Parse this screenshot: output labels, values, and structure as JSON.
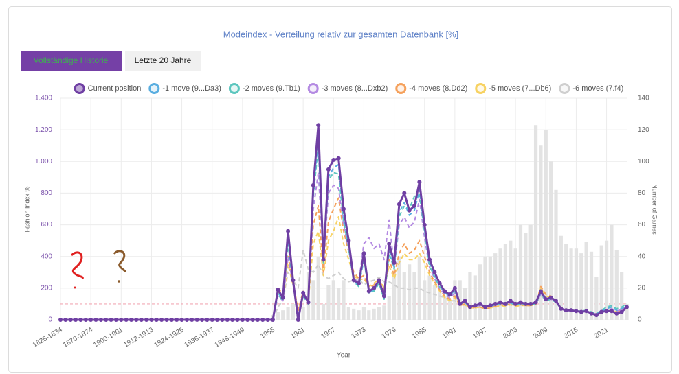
{
  "tabs": [
    "Vollständige Historie",
    "Letzte 20 Jahre"
  ],
  "chart_data": {
    "type": "line",
    "title": "Modeindex - Verteilung relativ zur gesamten Datenbank [%]",
    "y_label": "Fashion Index %",
    "y2_label": "Number of Games",
    "x_label": "Year",
    "categories": [
      "1825-1834",
      null,
      null,
      null,
      null,
      null,
      "1870-1874",
      null,
      null,
      null,
      null,
      null,
      "1900-1901",
      null,
      null,
      null,
      null,
      null,
      "1912-1913",
      null,
      null,
      null,
      null,
      null,
      "1924-1925",
      null,
      null,
      null,
      null,
      null,
      "1936-1937",
      null,
      null,
      null,
      null,
      null,
      "1948-1949",
      null,
      null,
      null,
      null,
      null,
      "1955",
      null,
      null,
      null,
      null,
      null,
      "1961",
      null,
      null,
      null,
      null,
      null,
      "1967",
      null,
      null,
      null,
      null,
      null,
      "1973",
      null,
      null,
      null,
      null,
      null,
      "1979",
      null,
      null,
      null,
      null,
      null,
      "1985",
      null,
      null,
      null,
      null,
      null,
      "1991",
      null,
      null,
      null,
      null,
      null,
      "1997",
      null,
      null,
      null,
      null,
      null,
      "2003",
      null,
      null,
      null,
      null,
      null,
      "2009",
      null,
      null,
      null,
      null,
      null,
      "2015",
      null,
      null,
      null,
      null,
      null,
      "2021",
      null,
      null,
      null,
      null
    ],
    "ylim": [
      0,
      1400
    ],
    "yticks": [
      0,
      200,
      400,
      600,
      800,
      {
        "value": 1000,
        "label": "1.000"
      },
      {
        "value": 1200,
        "label": "1.200"
      },
      {
        "value": 1400,
        "label": "1.400"
      }
    ],
    "y2lim": [
      0,
      140
    ],
    "y2ticks": [
      0,
      20,
      40,
      60,
      80,
      100,
      120,
      140
    ],
    "grid": true,
    "legend": "top",
    "reference_line": {
      "value": 100,
      "color": "#f2a9b4"
    },
    "series": [
      {
        "name": "Current position",
        "color": "#6f3fa3",
        "style": "solid",
        "markers": true,
        "values": [
          0,
          0,
          0,
          0,
          0,
          0,
          0,
          0,
          0,
          0,
          0,
          0,
          0,
          0,
          0,
          0,
          0,
          0,
          0,
          0,
          0,
          0,
          0,
          0,
          0,
          0,
          0,
          0,
          0,
          0,
          0,
          0,
          0,
          0,
          0,
          0,
          0,
          0,
          0,
          0,
          0,
          0,
          0,
          190,
          140,
          560,
          250,
          0,
          170,
          110,
          850,
          1230,
          380,
          950,
          1010,
          1020,
          700,
          500,
          250,
          230,
          420,
          180,
          200,
          250,
          150,
          480,
          360,
          730,
          800,
          690,
          720,
          870,
          600,
          380,
          300,
          230,
          180,
          160,
          200,
          100,
          120,
          80,
          90,
          100,
          80,
          90,
          100,
          110,
          100,
          120,
          100,
          110,
          100,
          100,
          110,
          180,
          130,
          140,
          120,
          70,
          60,
          60,
          55,
          50,
          55,
          40,
          30,
          50,
          55,
          55,
          40,
          50,
          80
        ]
      },
      {
        "name": "-1 move (9...Da3)",
        "color": "#5aaee0",
        "style": "dashed",
        "values": [
          0,
          0,
          0,
          0,
          0,
          0,
          0,
          0,
          0,
          0,
          0,
          0,
          0,
          0,
          0,
          0,
          0,
          0,
          0,
          0,
          0,
          0,
          0,
          0,
          0,
          0,
          0,
          0,
          0,
          0,
          0,
          0,
          0,
          0,
          0,
          0,
          0,
          0,
          0,
          0,
          0,
          0,
          0,
          170,
          130,
          520,
          240,
          10,
          160,
          110,
          800,
          1150,
          370,
          900,
          960,
          980,
          660,
          470,
          240,
          220,
          390,
          170,
          190,
          240,
          140,
          450,
          330,
          680,
          740,
          660,
          690,
          820,
          570,
          360,
          280,
          220,
          170,
          150,
          190,
          100,
          110,
          80,
          90,
          95,
          80,
          85,
          95,
          105,
          95,
          110,
          95,
          105,
          95,
          95,
          105,
          170,
          125,
          135,
          115,
          70,
          60,
          60,
          55,
          50,
          55,
          45,
          35,
          55,
          70,
          80,
          60,
          70,
          90
        ]
      },
      {
        "name": "-2 moves (9.Tb1)",
        "color": "#5cc6be",
        "style": "dashed",
        "values": [
          0,
          0,
          0,
          0,
          0,
          0,
          0,
          0,
          0,
          0,
          0,
          0,
          0,
          0,
          0,
          0,
          0,
          0,
          0,
          0,
          0,
          0,
          0,
          0,
          0,
          0,
          0,
          0,
          0,
          0,
          0,
          0,
          0,
          0,
          0,
          0,
          0,
          0,
          0,
          0,
          0,
          0,
          0,
          160,
          120,
          480,
          230,
          20,
          150,
          100,
          780,
          1100,
          360,
          880,
          930,
          920,
          620,
          450,
          240,
          210,
          380,
          170,
          180,
          230,
          130,
          420,
          320,
          650,
          720,
          700,
          780,
          790,
          560,
          340,
          270,
          210,
          170,
          150,
          180,
          100,
          110,
          80,
          90,
          95,
          80,
          85,
          95,
          100,
          95,
          105,
          95,
          100,
          95,
          95,
          100,
          170,
          120,
          130,
          110,
          70,
          60,
          60,
          55,
          55,
          60,
          50,
          40,
          60,
          80,
          90,
          70,
          80,
          100
        ]
      },
      {
        "name": "-3 moves (8...Dxb2)",
        "color": "#b48ae2",
        "style": "dashed",
        "values": [
          0,
          0,
          0,
          0,
          0,
          0,
          0,
          0,
          0,
          0,
          0,
          0,
          0,
          0,
          0,
          0,
          0,
          0,
          0,
          0,
          0,
          0,
          0,
          0,
          0,
          0,
          0,
          0,
          0,
          0,
          0,
          0,
          0,
          0,
          0,
          0,
          0,
          0,
          0,
          0,
          0,
          0,
          0,
          150,
          120,
          400,
          220,
          40,
          160,
          110,
          700,
          930,
          380,
          800,
          850,
          830,
          600,
          450,
          260,
          240,
          480,
          520,
          450,
          480,
          380,
          630,
          330,
          600,
          650,
          580,
          620,
          760,
          520,
          330,
          260,
          200,
          160,
          140,
          170,
          100,
          110,
          80,
          85,
          90,
          80,
          85,
          90,
          100,
          95,
          105,
          95,
          100,
          95,
          95,
          100,
          160,
          120,
          130,
          110,
          70,
          60,
          60,
          55,
          50,
          55,
          45,
          35,
          55,
          65,
          70,
          55,
          65,
          85
        ]
      },
      {
        "name": "-4 moves (8.Dd2)",
        "color": "#f5a15c",
        "style": "dashed",
        "values": [
          0,
          0,
          0,
          0,
          0,
          0,
          0,
          0,
          0,
          0,
          0,
          0,
          0,
          0,
          0,
          0,
          0,
          0,
          0,
          0,
          0,
          0,
          0,
          0,
          0,
          0,
          0,
          0,
          0,
          0,
          0,
          0,
          0,
          0,
          0,
          0,
          0,
          0,
          0,
          0,
          0,
          0,
          0,
          210,
          150,
          400,
          240,
          60,
          180,
          120,
          600,
          720,
          300,
          620,
          700,
          770,
          560,
          430,
          300,
          260,
          280,
          200,
          220,
          260,
          180,
          380,
          280,
          420,
          480,
          420,
          440,
          500,
          400,
          300,
          240,
          190,
          150,
          130,
          150,
          90,
          100,
          70,
          80,
          80,
          70,
          75,
          85,
          95,
          90,
          100,
          90,
          95,
          90,
          90,
          100,
          210,
          160,
          150,
          120,
          70,
          60,
          60,
          55,
          50,
          55,
          45,
          35,
          50,
          60,
          65,
          50,
          60,
          80
        ]
      },
      {
        "name": "-5 moves (7...Db6)",
        "color": "#f7d262",
        "style": "dashed",
        "values": [
          0,
          0,
          0,
          0,
          0,
          0,
          0,
          0,
          0,
          0,
          0,
          0,
          0,
          0,
          0,
          0,
          0,
          0,
          0,
          0,
          0,
          0,
          0,
          0,
          0,
          0,
          0,
          0,
          0,
          0,
          0,
          0,
          0,
          0,
          0,
          0,
          0,
          0,
          0,
          0,
          0,
          0,
          0,
          180,
          130,
          350,
          220,
          60,
          160,
          110,
          480,
          560,
          280,
          500,
          560,
          650,
          480,
          380,
          280,
          250,
          260,
          210,
          230,
          260,
          200,
          340,
          260,
          360,
          420,
          380,
          380,
          420,
          360,
          280,
          230,
          180,
          140,
          120,
          140,
          90,
          95,
          70,
          75,
          80,
          70,
          75,
          80,
          90,
          85,
          95,
          85,
          90,
          90,
          90,
          95,
          200,
          150,
          140,
          115,
          70,
          60,
          60,
          55,
          50,
          55,
          45,
          35,
          50,
          55,
          60,
          50,
          55,
          75
        ]
      },
      {
        "name": "-6 moves (7.f4)",
        "color": "#cfcfcf",
        "style": "dashed",
        "values": [
          0,
          0,
          0,
          0,
          0,
          0,
          0,
          0,
          0,
          0,
          0,
          0,
          0,
          0,
          0,
          0,
          0,
          0,
          0,
          0,
          0,
          0,
          0,
          0,
          0,
          0,
          0,
          0,
          0,
          0,
          0,
          0,
          0,
          0,
          0,
          0,
          0,
          0,
          0,
          0,
          0,
          0,
          0,
          80,
          120,
          300,
          250,
          200,
          440,
          320,
          300,
          350,
          280,
          260,
          280,
          300,
          260,
          240,
          250,
          260,
          220,
          240,
          250,
          270,
          240,
          240,
          220,
          200,
          200,
          190,
          200,
          200,
          180,
          170,
          160,
          150,
          140,
          120,
          120,
          100,
          100,
          90,
          90,
          95,
          85,
          85,
          90,
          95,
          90,
          100,
          90,
          95,
          90,
          90,
          100,
          150,
          130,
          130,
          110,
          70,
          60,
          60,
          55,
          50,
          55,
          45,
          35,
          50,
          55,
          60,
          50,
          55,
          70
        ]
      },
      {
        "type": "bar",
        "axis": "y2",
        "color": "#e3e3e3",
        "values": [
          0,
          0,
          0,
          0,
          0,
          0,
          0,
          0,
          0,
          0,
          0,
          0,
          0,
          0,
          0,
          0,
          0,
          0,
          0,
          0,
          0,
          0,
          0,
          0,
          0,
          0,
          0,
          0,
          0,
          0,
          0,
          0,
          0,
          0,
          0,
          0,
          0,
          0,
          0,
          0,
          0,
          0,
          3,
          5,
          6,
          8,
          10,
          3,
          8,
          30,
          25,
          40,
          10,
          22,
          25,
          20,
          25,
          8,
          7,
          6,
          8,
          6,
          7,
          8,
          9,
          15,
          30,
          40,
          30,
          35,
          30,
          40,
          25,
          28,
          22,
          18,
          15,
          12,
          25,
          25,
          20,
          30,
          28,
          35,
          40,
          40,
          42,
          45,
          48,
          50,
          45,
          60,
          55,
          60,
          123,
          110,
          120,
          100,
          82,
          53,
          48,
          45,
          45,
          42,
          49,
          43,
          27,
          47,
          50,
          60,
          44,
          30,
          10
        ]
      }
    ]
  }
}
